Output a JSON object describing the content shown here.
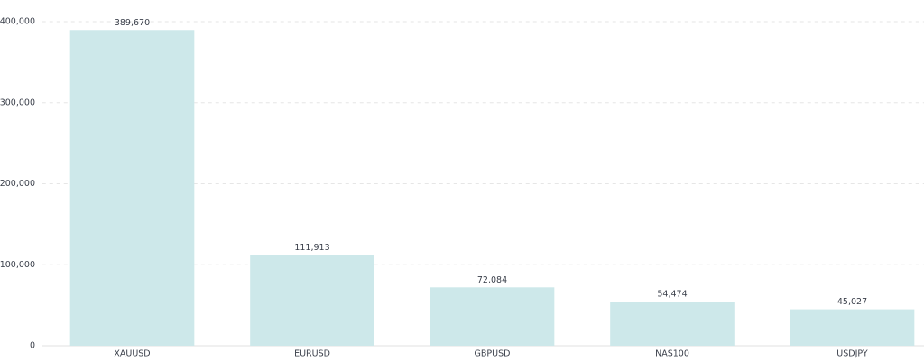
{
  "chart_data": {
    "type": "bar",
    "categories": [
      "XAUUSD",
      "EURUSD",
      "GBPUSD",
      "NAS100",
      "USDJPY"
    ],
    "values": [
      389670,
      111913,
      72084,
      54474,
      45027
    ],
    "value_labels": [
      "389,670",
      "111,913",
      "72,084",
      "54,474",
      "45,027"
    ],
    "color": "#cde8ea",
    "ylim": [
      0,
      400000
    ],
    "yticks": [
      0,
      {
        "value": 100000,
        "label": "100,000"
      },
      {
        "value": 200000,
        "label": "200,000"
      },
      {
        "value": 300000,
        "label": "300,000"
      },
      {
        "value": 400000,
        "label": "400,000"
      }
    ],
    "grid": true
  }
}
